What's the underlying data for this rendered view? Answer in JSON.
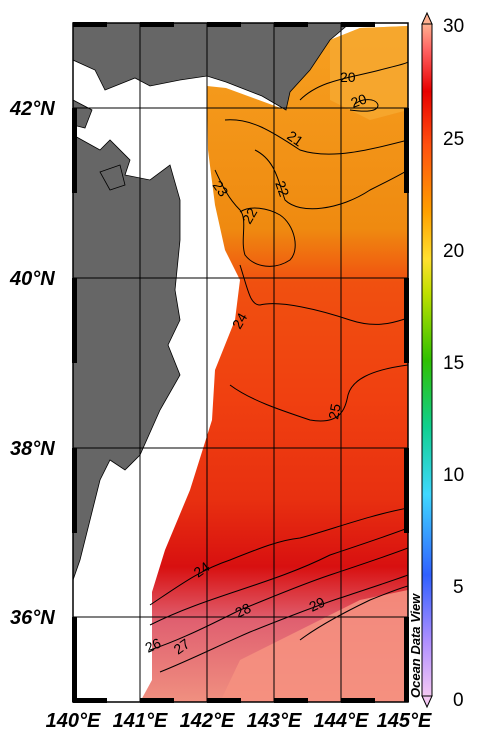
{
  "map": {
    "lat_labels": [
      "42°N",
      "40°N",
      "38°N",
      "36°N"
    ],
    "lon_labels": [
      "140°E",
      "141°E",
      "142°E",
      "143°E",
      "144°E",
      "145°E"
    ],
    "lat_range": [
      35,
      43
    ],
    "lon_range": [
      140,
      145
    ],
    "land_color": "#666666",
    "watermark": "Ocean Data View"
  },
  "colorbar": {
    "ticks": [
      "30",
      "25",
      "20",
      "15",
      "10",
      "5",
      "0"
    ],
    "range": [
      0,
      30
    ],
    "colormap": [
      "#f0b8f0",
      "#8080ff",
      "#2080ff",
      "#00d0ff",
      "#00e070",
      "#60d000",
      "#ffff40",
      "#ffa500",
      "#ff4000",
      "#e00000",
      "#ff9080"
    ]
  },
  "contour_labels": [
    "20",
    "20",
    "21",
    "22",
    "23",
    "22",
    "24",
    "25",
    "24",
    "26",
    "27",
    "28",
    "29"
  ]
}
